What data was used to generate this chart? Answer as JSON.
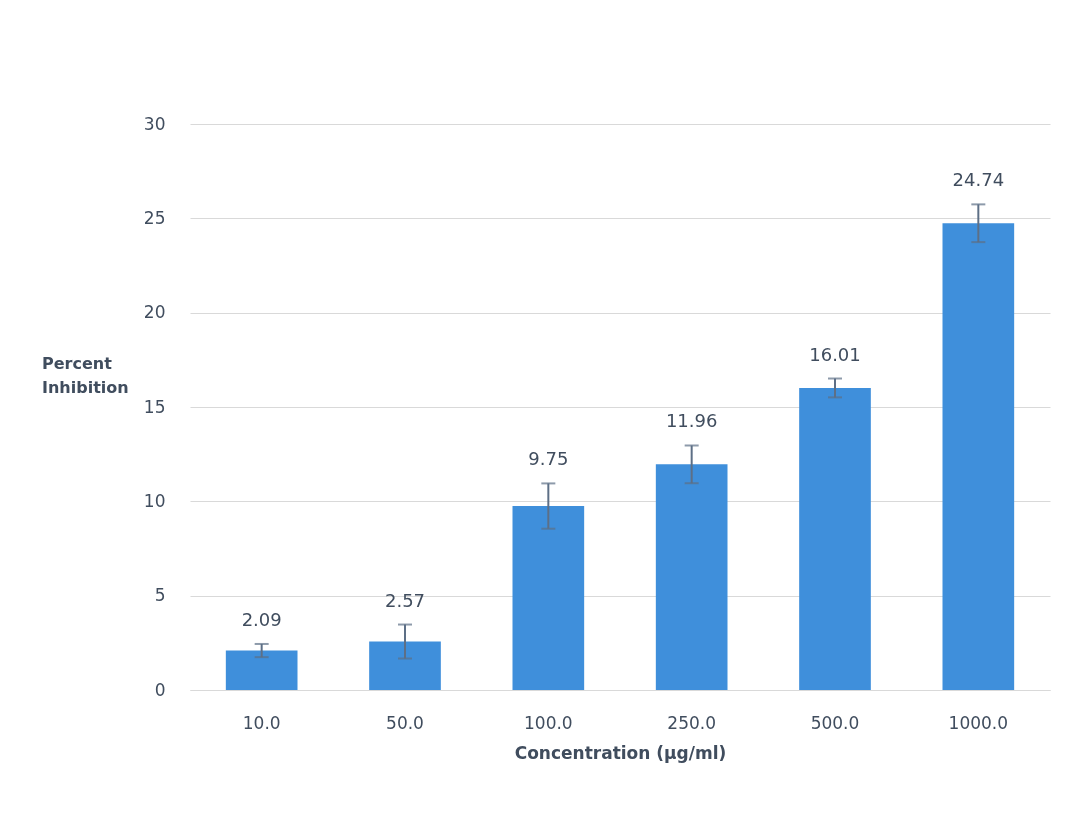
{
  "chart_data": {
    "type": "bar",
    "xlabel": "Concentration (µg/ml)",
    "ylabel": "Percent Inhibition",
    "categories": [
      "10.0",
      "50.0",
      "100.0",
      "250.0",
      "500.0",
      "1000.0"
    ],
    "values": [
      2.09,
      2.57,
      9.75,
      11.96,
      16.01,
      24.74
    ],
    "errors": [
      0.35,
      0.9,
      1.2,
      1.0,
      0.5,
      1.0
    ],
    "color": "#3f8fdb",
    "ylim": [
      0,
      30
    ],
    "yticks": [
      0,
      5,
      10,
      15,
      20,
      25,
      30
    ],
    "grid": "y",
    "data_labels": true
  }
}
